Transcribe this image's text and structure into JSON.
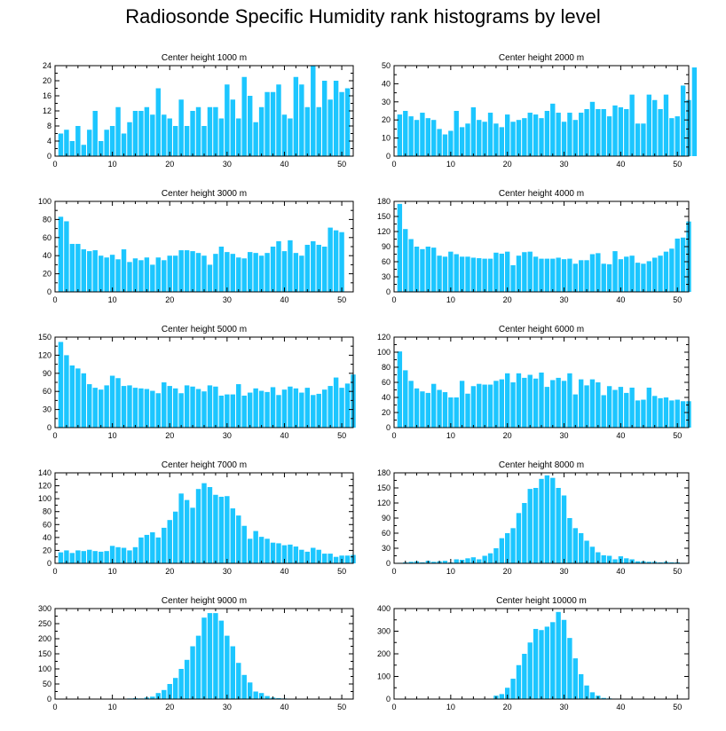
{
  "title": "Radiosonde Specific Humidity rank histograms by level",
  "colors": {
    "bar": "#1cc6ff",
    "axis": "#000000",
    "background": "#ffffff"
  },
  "chart_data": [
    {
      "type": "bar",
      "title": "Center height 1000 m",
      "xlabel": "",
      "ylabel": "",
      "xlim": [
        0,
        52
      ],
      "xticks": [
        0,
        10,
        20,
        30,
        40,
        50
      ],
      "ylim": [
        0,
        24
      ],
      "yticks": [
        0,
        4,
        8,
        12,
        16,
        20,
        24
      ],
      "values": [
        6,
        7,
        4,
        8,
        3,
        7,
        12,
        4,
        7,
        8,
        13,
        6,
        9,
        12,
        12,
        13,
        11,
        18,
        11,
        10,
        8,
        15,
        8,
        12,
        13,
        8,
        13,
        13,
        10,
        19,
        15,
        10,
        21,
        16,
        9,
        13,
        17,
        17,
        19,
        11,
        10,
        21,
        19,
        13,
        24,
        13,
        20,
        15,
        20,
        17,
        18
      ]
    },
    {
      "type": "bar",
      "title": "Center height 2000 m",
      "xlabel": "",
      "ylabel": "",
      "xlim": [
        0,
        52
      ],
      "xticks": [
        0,
        10,
        20,
        30,
        40,
        50
      ],
      "ylim": [
        0,
        50
      ],
      "yticks": [
        0,
        10,
        20,
        30,
        40,
        50
      ],
      "values": [
        23,
        25,
        22,
        20,
        24,
        21,
        20,
        15,
        12,
        14,
        25,
        16,
        18,
        27,
        20,
        19,
        24,
        18,
        16,
        23,
        19,
        20,
        21,
        24,
        23,
        21,
        25,
        29,
        24,
        19,
        24,
        20,
        24,
        26,
        30,
        26,
        26,
        22,
        28,
        27,
        26,
        34,
        18,
        18,
        34,
        31,
        26,
        34,
        21,
        22,
        39,
        31,
        49
      ]
    },
    {
      "type": "bar",
      "title": "Center height 3000 m",
      "xlabel": "",
      "ylabel": "",
      "xlim": [
        0,
        52
      ],
      "xticks": [
        0,
        10,
        20,
        30,
        40,
        50
      ],
      "ylim": [
        0,
        100
      ],
      "yticks": [
        0,
        20,
        40,
        60,
        80,
        100
      ],
      "values": [
        83,
        78,
        53,
        53,
        47,
        45,
        46,
        40,
        38,
        41,
        36,
        47,
        33,
        37,
        35,
        38,
        30,
        38,
        35,
        40,
        40,
        46,
        46,
        45,
        43,
        40,
        30,
        42,
        50,
        44,
        42,
        38,
        37,
        44,
        43,
        40,
        43,
        50,
        56,
        45,
        57,
        43,
        40,
        52,
        56,
        52,
        50,
        71,
        68,
        66
      ]
    },
    {
      "type": "bar",
      "title": "Center height 4000 m",
      "xlabel": "",
      "ylabel": "",
      "xlim": [
        0,
        52
      ],
      "xticks": [
        0,
        10,
        20,
        30,
        40,
        50
      ],
      "ylim": [
        0,
        180
      ],
      "yticks": [
        0,
        30,
        60,
        90,
        120,
        150,
        180
      ],
      "values": [
        175,
        125,
        105,
        90,
        85,
        90,
        88,
        72,
        70,
        80,
        75,
        70,
        70,
        68,
        67,
        66,
        66,
        78,
        76,
        80,
        53,
        72,
        79,
        80,
        70,
        66,
        66,
        66,
        68,
        65,
        66,
        56,
        63,
        63,
        75,
        77,
        56,
        55,
        81,
        65,
        70,
        72,
        58,
        56,
        61,
        68,
        72,
        80,
        86,
        106,
        108,
        140
      ]
    },
    {
      "type": "bar",
      "title": "Center height 5000 m",
      "xlabel": "",
      "ylabel": "",
      "xlim": [
        0,
        52
      ],
      "xticks": [
        0,
        10,
        20,
        30,
        40,
        50
      ],
      "ylim": [
        0,
        150
      ],
      "yticks": [
        0,
        30,
        60,
        90,
        120,
        150
      ],
      "values": [
        142,
        120,
        103,
        98,
        90,
        72,
        66,
        63,
        70,
        86,
        82,
        69,
        70,
        66,
        65,
        64,
        61,
        57,
        75,
        69,
        65,
        57,
        70,
        68,
        64,
        60,
        70,
        68,
        53,
        55,
        55,
        72,
        53,
        58,
        65,
        61,
        59,
        67,
        54,
        63,
        68,
        65,
        58,
        66,
        54,
        56,
        63,
        69,
        83,
        66,
        73,
        88
      ]
    },
    {
      "type": "bar",
      "title": "Center height 6000 m",
      "xlabel": "",
      "ylabel": "",
      "xlim": [
        0,
        52
      ],
      "xticks": [
        0,
        10,
        20,
        30,
        40,
        50
      ],
      "ylim": [
        0,
        120
      ],
      "yticks": [
        0,
        20,
        40,
        60,
        80,
        100,
        120
      ],
      "values": [
        101,
        76,
        62,
        52,
        48,
        46,
        58,
        50,
        47,
        40,
        40,
        62,
        45,
        55,
        58,
        57,
        57,
        62,
        64,
        72,
        60,
        72,
        66,
        70,
        65,
        73,
        54,
        63,
        66,
        62,
        72,
        44,
        64,
        56,
        64,
        60,
        43,
        55,
        50,
        54,
        46,
        53,
        36,
        37,
        53,
        42,
        39,
        40,
        36,
        37,
        35,
        35
      ]
    },
    {
      "type": "bar",
      "title": "Center height 7000 m",
      "xlabel": "",
      "ylabel": "",
      "xlim": [
        0,
        52
      ],
      "xticks": [
        0,
        10,
        20,
        30,
        40,
        50
      ],
      "ylim": [
        0,
        140
      ],
      "yticks": [
        0,
        20,
        40,
        60,
        80,
        100,
        120,
        140
      ],
      "values": [
        17,
        20,
        16,
        20,
        19,
        21,
        19,
        18,
        19,
        27,
        25,
        24,
        20,
        25,
        40,
        44,
        48,
        40,
        55,
        67,
        80,
        108,
        98,
        86,
        115,
        124,
        118,
        106,
        103,
        104,
        85,
        74,
        58,
        38,
        50,
        41,
        38,
        32,
        31,
        28,
        29,
        26,
        21,
        18,
        24,
        21,
        15,
        15,
        10,
        12,
        12,
        13
      ]
    },
    {
      "type": "bar",
      "title": "Center height 8000 m",
      "xlabel": "",
      "ylabel": "",
      "xlim": [
        0,
        52
      ],
      "xticks": [
        0,
        10,
        20,
        30,
        40,
        50
      ],
      "ylim": [
        0,
        180
      ],
      "yticks": [
        0,
        30,
        60,
        90,
        120,
        150,
        180
      ],
      "values": [
        1,
        2,
        3,
        4,
        2,
        5,
        3,
        4,
        5,
        2,
        8,
        7,
        10,
        12,
        8,
        15,
        20,
        30,
        50,
        60,
        70,
        100,
        120,
        148,
        150,
        168,
        175,
        170,
        150,
        135,
        90,
        70,
        60,
        45,
        33,
        22,
        16,
        15,
        8,
        14,
        10,
        8,
        4,
        4,
        3,
        3,
        2,
        3,
        2,
        2,
        1
      ]
    },
    {
      "type": "bar",
      "title": "Center height 9000 m",
      "xlabel": "",
      "ylabel": "",
      "xlim": [
        0,
        52
      ],
      "xticks": [
        0,
        10,
        20,
        30,
        40,
        50
      ],
      "ylim": [
        0,
        300
      ],
      "yticks": [
        0,
        50,
        100,
        150,
        200,
        250,
        300
      ],
      "values": [
        0,
        0,
        0,
        0,
        0,
        0,
        0,
        0,
        0,
        0,
        0,
        1,
        2,
        3,
        2,
        5,
        8,
        20,
        30,
        50,
        70,
        100,
        130,
        175,
        210,
        270,
        285,
        285,
        260,
        210,
        175,
        120,
        80,
        55,
        25,
        20,
        10,
        5,
        3,
        2,
        1,
        1,
        1,
        0,
        0,
        0,
        0,
        0,
        0,
        0,
        0,
        0
      ]
    },
    {
      "type": "bar",
      "title": "Center height 10000 m",
      "xlabel": "",
      "ylabel": "",
      "xlim": [
        0,
        52
      ],
      "xticks": [
        0,
        10,
        20,
        30,
        40,
        50
      ],
      "ylim": [
        0,
        400
      ],
      "yticks": [
        0,
        100,
        200,
        300,
        400
      ],
      "values": [
        0,
        0,
        0,
        0,
        0,
        0,
        0,
        0,
        0,
        0,
        0,
        0,
        0,
        0,
        0,
        1,
        2,
        15,
        22,
        50,
        90,
        150,
        200,
        250,
        310,
        305,
        320,
        340,
        385,
        350,
        270,
        180,
        110,
        60,
        30,
        15,
        5,
        3,
        2,
        1,
        1,
        1,
        0,
        1,
        0,
        0,
        0,
        0,
        0,
        0,
        0,
        0
      ]
    }
  ]
}
